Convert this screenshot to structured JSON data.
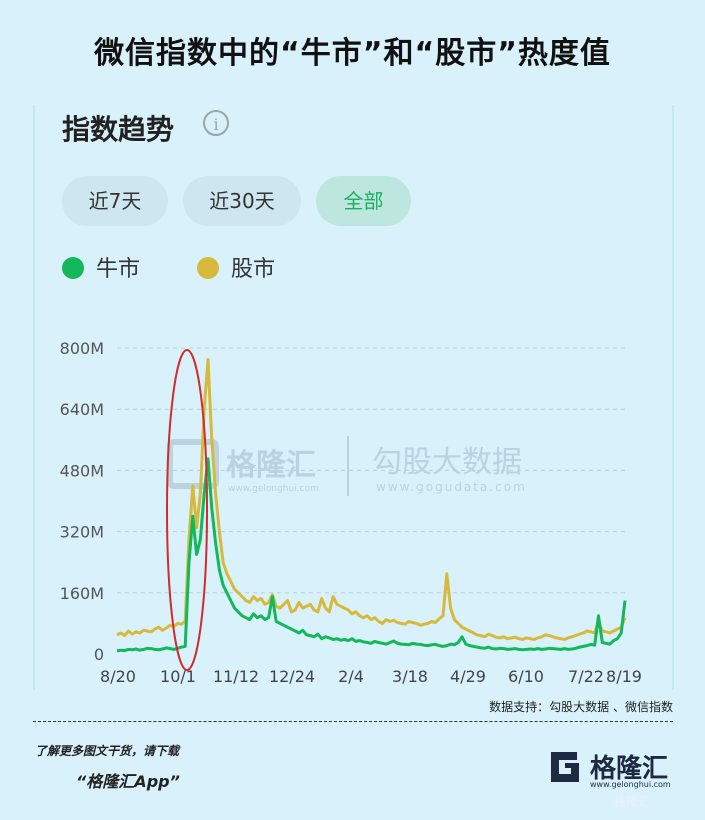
{
  "page": {
    "title": "微信指数中的“牛市”和“股市”热度值",
    "section_title": "指数趋势",
    "info_icon": "info-icon",
    "buttons": [
      {
        "label": "近7天",
        "active": false
      },
      {
        "label": "近30天",
        "active": false
      },
      {
        "label": "全部",
        "active": true
      }
    ],
    "source": "数据支持：勾股大数据 、微信指数",
    "promo_line1": "了解更多图文干货，请下载",
    "promo_line2": "“格隆汇App”",
    "logo_text": "格隆汇",
    "logo_url": "www.gelonghui.com",
    "watermark_left": "格隆汇",
    "watermark_left_url": "www.gelonghui.com",
    "watermark_right": "勾股大数据",
    "watermark_right_url": "www.gogudata.com",
    "corner_watermark": "格隆汇"
  },
  "colors": {
    "niushi": "#12b85a",
    "gushi": "#d7b93c",
    "background": "#d9f1fb",
    "highlight_ellipse": "#d12b2b"
  },
  "chart_data": {
    "type": "line",
    "title": "",
    "xlabel": "",
    "ylabel": "",
    "ylim": [
      0,
      800
    ],
    "y_unit": "M",
    "y_ticks": [
      "0",
      "160M",
      "320M",
      "480M",
      "640M",
      "800M"
    ],
    "x_tick_labels": [
      "8/20",
      "10/1",
      "11/12",
      "12/24",
      "2/4",
      "3/18",
      "4/29",
      "6/10",
      "7/22",
      "8/19"
    ],
    "legend": "top-left",
    "grid": true,
    "highlight": "ellipse around the 10/1 peak",
    "series": [
      {
        "name": "牛市",
        "color": "#12b85a",
        "values": [
          8,
          10,
          9,
          12,
          11,
          13,
          10,
          12,
          15,
          14,
          12,
          11,
          13,
          16,
          14,
          12,
          15,
          18,
          20,
          240,
          360,
          260,
          300,
          420,
          510,
          380,
          290,
          220,
          180,
          160,
          140,
          120,
          110,
          100,
          95,
          90,
          105,
          95,
          100,
          90,
          95,
          150,
          85,
          80,
          75,
          70,
          65,
          60,
          55,
          62,
          50,
          48,
          45,
          52,
          40,
          45,
          42,
          38,
          40,
          36,
          38,
          35,
          40,
          33,
          35,
          32,
          30,
          28,
          33,
          30,
          28,
          26,
          30,
          34,
          28,
          26,
          25,
          24,
          28,
          26,
          25,
          23,
          22,
          24,
          25,
          22,
          20,
          22,
          26,
          24,
          30,
          45,
          26,
          22,
          20,
          18,
          16,
          15,
          18,
          14,
          13,
          15,
          14,
          12,
          13,
          14,
          12,
          11,
          12,
          13,
          12,
          14,
          12,
          13,
          15,
          14,
          13,
          12,
          14,
          12,
          13,
          15,
          18,
          20,
          22,
          25,
          23,
          100,
          30,
          28,
          26,
          35,
          40,
          55,
          140
        ]
      },
      {
        "name": "股市",
        "color": "#d7b93c",
        "values": [
          50,
          55,
          48,
          60,
          52,
          58,
          55,
          62,
          60,
          58,
          65,
          70,
          62,
          68,
          75,
          72,
          80,
          78,
          85,
          300,
          440,
          330,
          420,
          640,
          770,
          560,
          420,
          320,
          240,
          210,
          190,
          170,
          160,
          150,
          140,
          135,
          150,
          140,
          145,
          130,
          135,
          155,
          125,
          120,
          130,
          140,
          110,
          115,
          135,
          120,
          125,
          130,
          115,
          110,
          145,
          120,
          110,
          150,
          130,
          125,
          120,
          115,
          105,
          110,
          100,
          95,
          100,
          90,
          95,
          85,
          80,
          90,
          85,
          88,
          82,
          80,
          78,
          85,
          82,
          80,
          75,
          78,
          80,
          85,
          82,
          92,
          100,
          210,
          120,
          90,
          80,
          70,
          65,
          60,
          55,
          50,
          48,
          45,
          52,
          48,
          44,
          42,
          45,
          40,
          42,
          44,
          40,
          38,
          42,
          40,
          38,
          42,
          45,
          50,
          48,
          45,
          42,
          40,
          38,
          42,
          45,
          48,
          52,
          55,
          60,
          58,
          55,
          85,
          60,
          58,
          55,
          60,
          65,
          70,
          95
        ]
      }
    ]
  }
}
